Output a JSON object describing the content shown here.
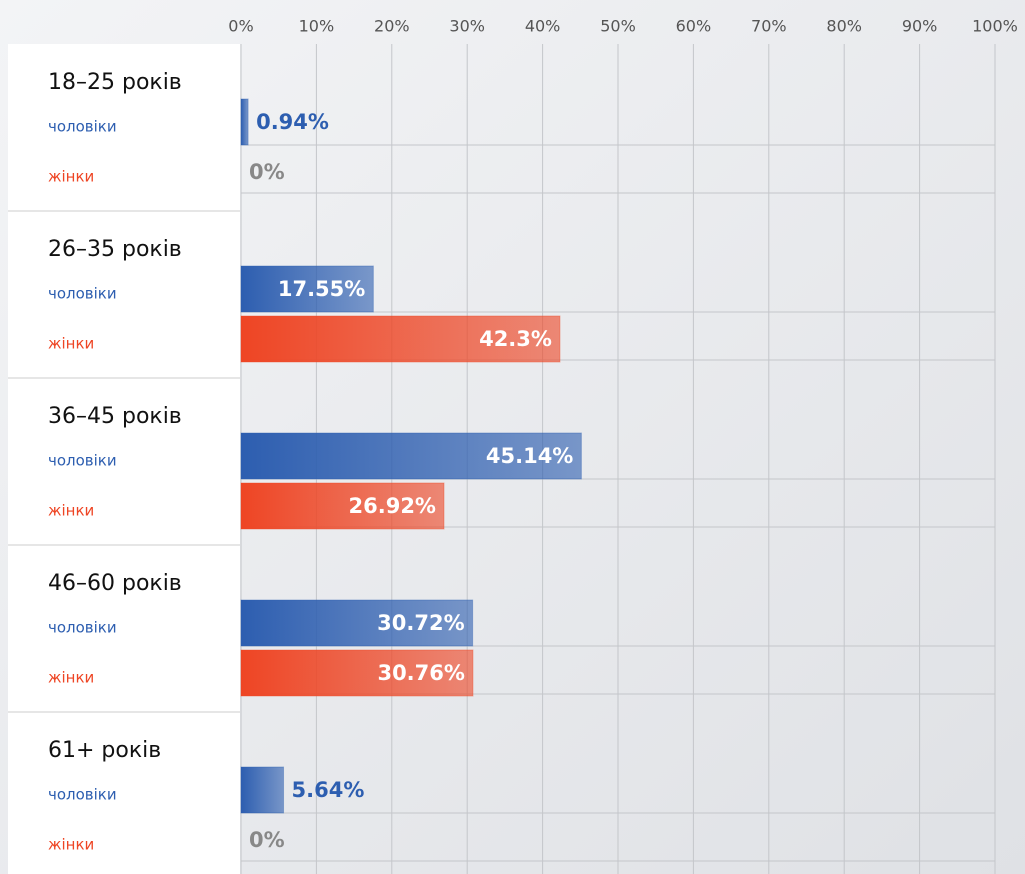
{
  "chart_data": {
    "type": "bar",
    "orientation": "horizontal",
    "categories": [
      "18–25 років",
      "26–35 років",
      "36–45 років",
      "46–60 років",
      "61+ років"
    ],
    "series": [
      {
        "name": "чоловіки",
        "color": "#2d5eb0",
        "values": [
          0.94,
          17.55,
          45.14,
          30.72,
          5.64
        ],
        "value_labels": [
          "0.94%",
          "17.55%",
          "45.14%",
          "30.72%",
          "5.64%"
        ]
      },
      {
        "name": "жінки",
        "color": "#ee4524",
        "values": [
          0,
          42.3,
          26.92,
          30.76,
          0
        ],
        "value_labels": [
          "0%",
          "42.3%",
          "26.92%",
          "30.76%",
          "0%"
        ]
      }
    ],
    "xlim": [
      0,
      100
    ],
    "xticks": [
      {
        "value": 0,
        "label": "0%"
      },
      {
        "value": 10,
        "label": "10%"
      },
      {
        "value": 20,
        "label": "20%"
      },
      {
        "value": 30,
        "label": "30%"
      },
      {
        "value": 40,
        "label": "40%"
      },
      {
        "value": 50,
        "label": "50%"
      },
      {
        "value": 60,
        "label": "60%"
      },
      {
        "value": 70,
        "label": "70%"
      },
      {
        "value": 80,
        "label": "80%"
      },
      {
        "value": 90,
        "label": "90%"
      },
      {
        "value": 100,
        "label": "100%"
      }
    ],
    "grid": true
  }
}
